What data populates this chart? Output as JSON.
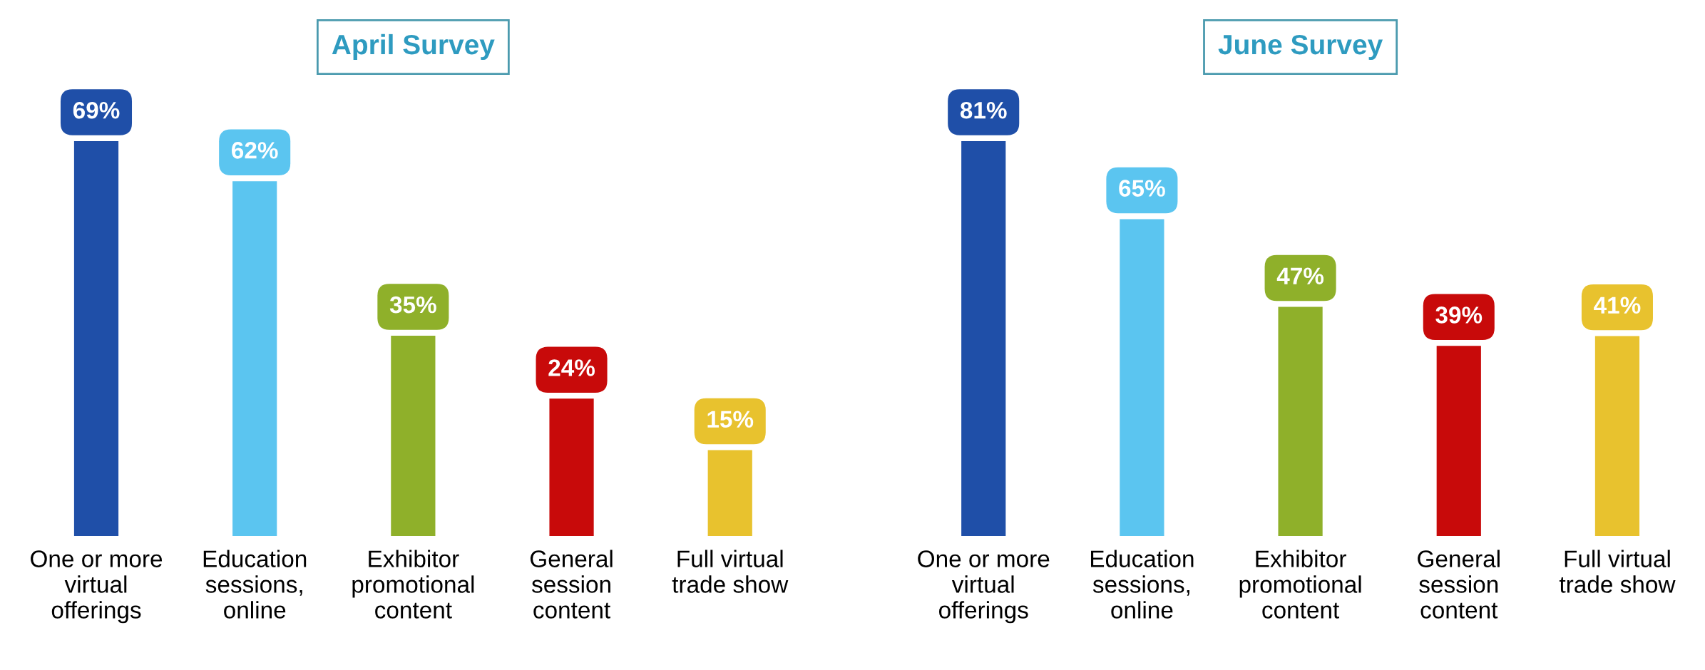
{
  "chart_data": [
    {
      "type": "bar",
      "title": "April Survey",
      "categories": [
        "One or more\nvirtual\nofferings",
        "Education\nsessions,\nonline",
        "Exhibitor\npromotional\ncontent",
        "General\nsession\ncontent",
        "Full virtual\ntrade show"
      ],
      "values": [
        69,
        62,
        35,
        24,
        15
      ],
      "value_labels": [
        "69%",
        "62%",
        "35%",
        "24%",
        "15%"
      ],
      "colors": [
        "#1f4fa8",
        "#5bc5f0",
        "#8fb02a",
        "#c80a0a",
        "#e8c22e"
      ],
      "grid": false,
      "legend": false
    },
    {
      "type": "bar",
      "title": "June Survey",
      "categories": [
        "One or more\nvirtual\nofferings",
        "Education\nsessions,\nonline",
        "Exhibitor\npromotional\ncontent",
        "General\nsession\ncontent",
        "Full virtual\ntrade show"
      ],
      "values": [
        81,
        65,
        47,
        39,
        41
      ],
      "value_labels": [
        "81%",
        "65%",
        "47%",
        "39%",
        "41%"
      ],
      "colors": [
        "#1f4fa8",
        "#5bc5f0",
        "#8fb02a",
        "#c80a0a",
        "#e8c22e"
      ],
      "grid": false,
      "legend": false
    }
  ]
}
